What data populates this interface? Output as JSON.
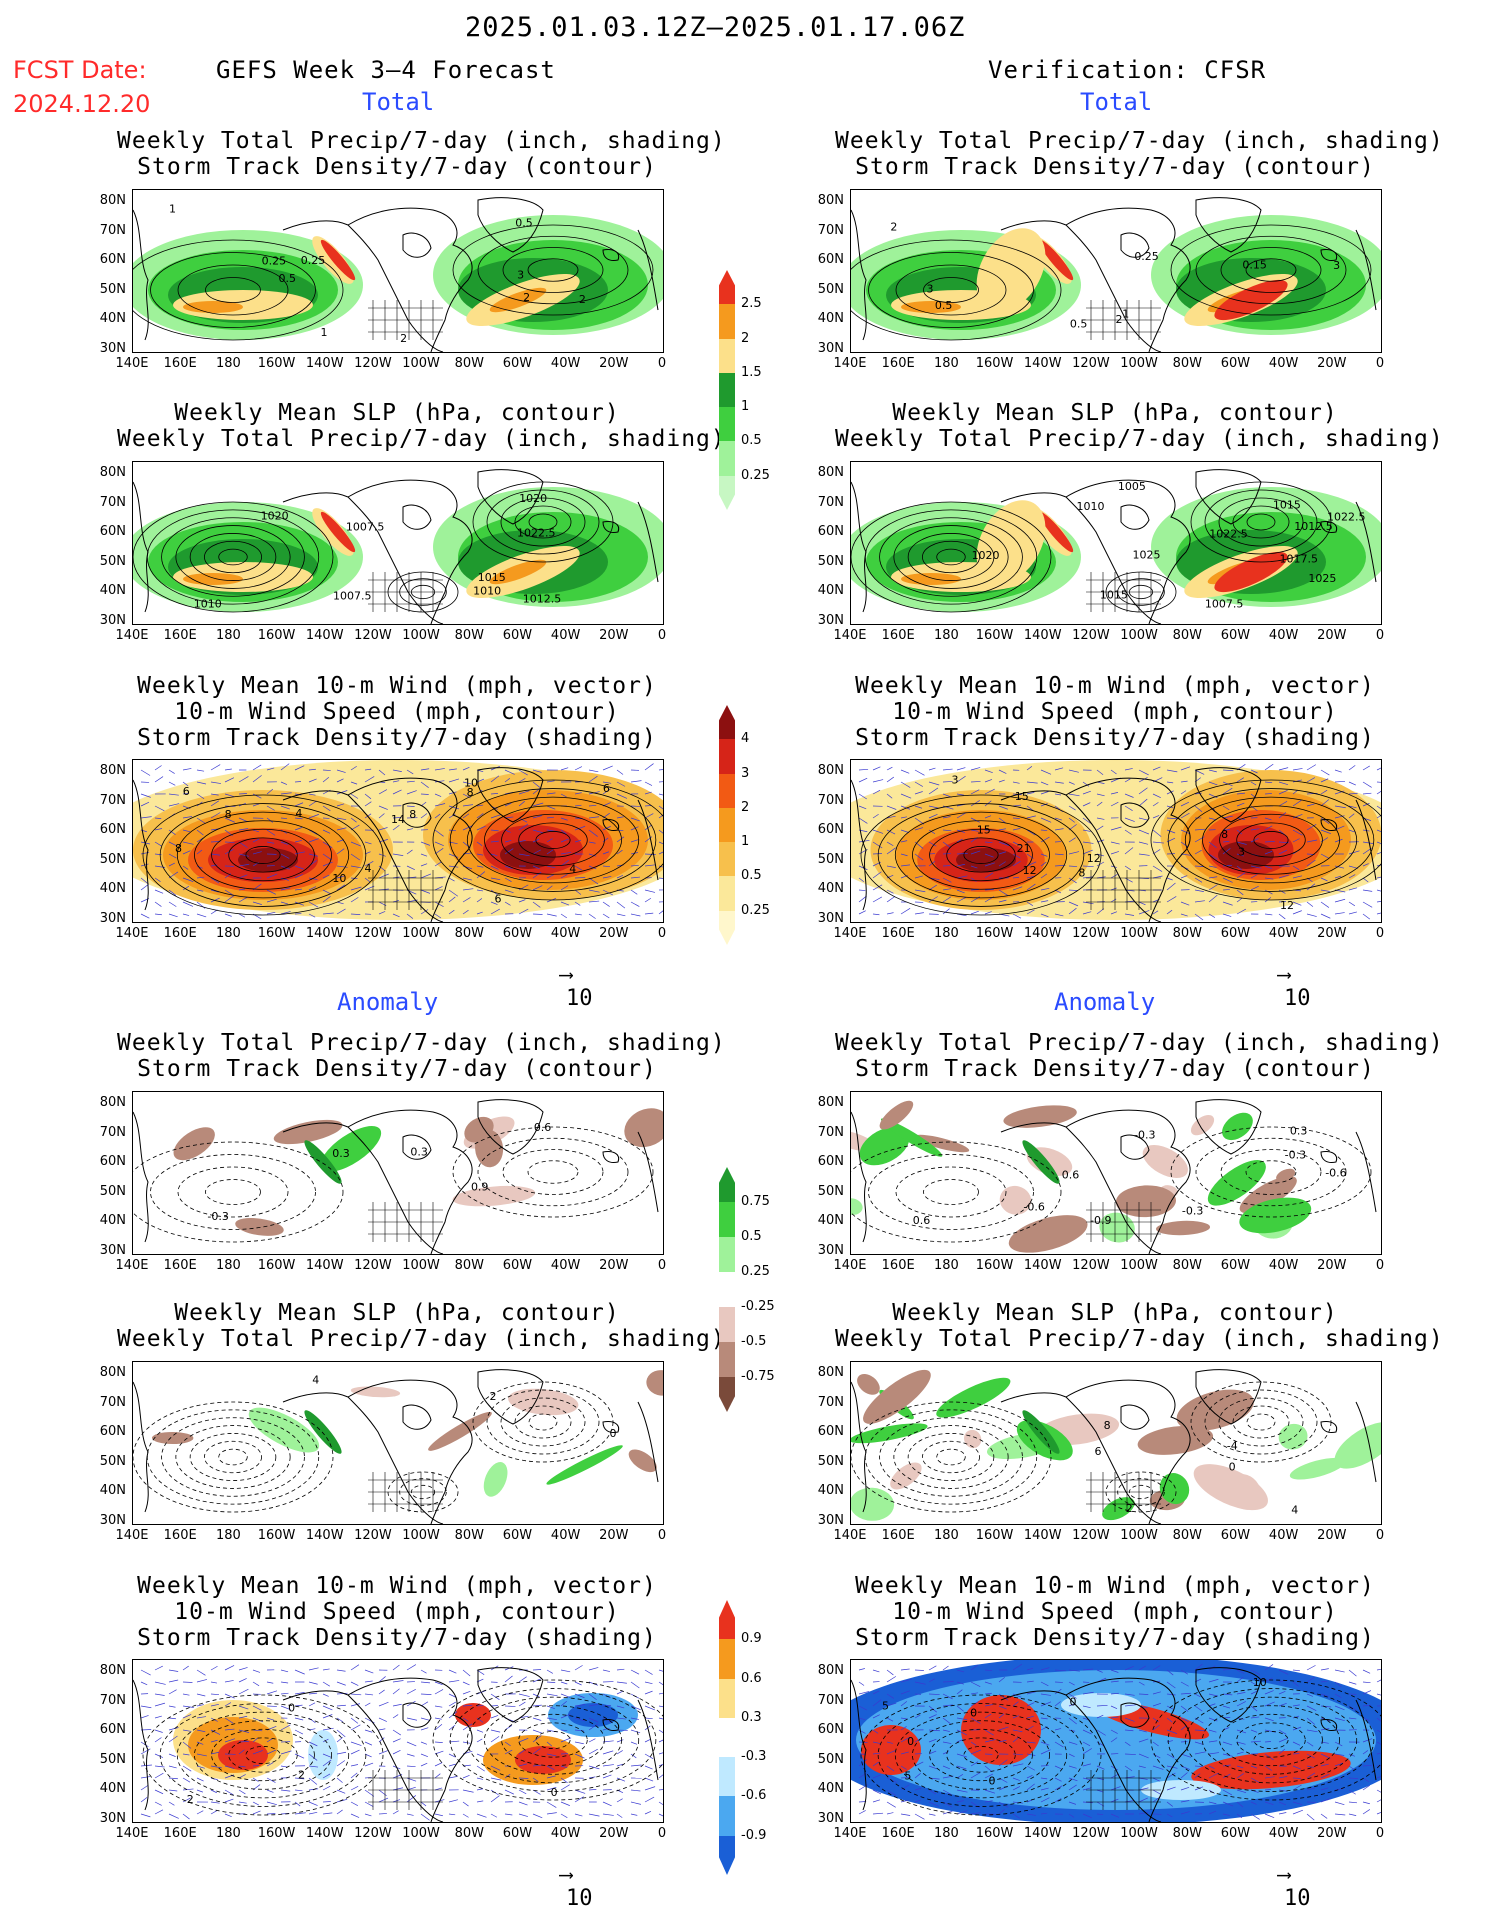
{
  "header": {
    "date_range": "2025.01.03.12Z–2025.01.17.06Z",
    "fcst_label": "FCST Date:",
    "fcst_date": "2024.12.20",
    "forecast_title": "GEFS Week 3–4 Forecast",
    "verification_title": "Verification: CFSR"
  },
  "sections": {
    "total_label": "Total",
    "anomaly_label": "Anomaly"
  },
  "panel_titles": {
    "precip_storm": [
      "Weekly Total Precip/7-day (inch, shading)",
      "Storm Track Density/7-day (contour)"
    ],
    "slp_precip": [
      "Weekly Mean SLP (hPa, contour)",
      "Weekly Total Precip/7-day (inch, shading)"
    ],
    "wind_storm": [
      "Weekly Mean 10-m Wind (mph, vector)",
      "10-m Wind Speed (mph, contour)",
      "Storm Track Density/7-day (shading)"
    ]
  },
  "axes": {
    "lat_labels": [
      "80N",
      "70N",
      "60N",
      "50N",
      "40N",
      "30N"
    ],
    "lon_labels": [
      "140E",
      "160E",
      "180",
      "160W",
      "140W",
      "120W",
      "100W",
      "80W",
      "60W",
      "40W",
      "20W",
      "0"
    ]
  },
  "vector_reference": "10",
  "colorbars": {
    "precip_total": {
      "labels": [
        "2.5",
        "2",
        "1.5",
        "1",
        "0.5",
        "0.25"
      ],
      "colors": [
        "#e8321e",
        "#f59a1e",
        "#fce08a",
        "#1f9a2e",
        "#3fcf3f",
        "#9ff29a",
        "#c7f7c3"
      ]
    },
    "storm_total": {
      "labels": [
        "4",
        "3",
        "2",
        "1",
        "0.5",
        "0.25"
      ],
      "colors": [
        "#8c1010",
        "#d62418",
        "#f25a14",
        "#f59a1e",
        "#f7c04c",
        "#fbe89a",
        "#fff7cc"
      ]
    },
    "precip_anom": {
      "labels": [
        "0.75",
        "0.5",
        "0.25",
        "-0.25",
        "-0.5",
        "-0.75"
      ],
      "colors": [
        "#1f9a2e",
        "#3fcf3f",
        "#9ff29a",
        "#ffffff",
        "#e8c8c0",
        "#b88a7a",
        "#7a4a3a"
      ]
    },
    "storm_anom": {
      "labels": [
        "0.9",
        "0.6",
        "0.3",
        "-0.3",
        "-0.6",
        "-0.9"
      ],
      "colors": [
        "#e8321e",
        "#f59a1e",
        "#fce08a",
        "#ffffff",
        "#bfe9ff",
        "#4ba8f0",
        "#1a5fd6"
      ]
    }
  },
  "panels": {
    "ft1": {
      "contours": [
        "0.5",
        "1",
        "0.5",
        "2",
        "3",
        "2",
        "0.25",
        "0.25",
        "1",
        "2"
      ]
    },
    "vt1": {
      "contours": [
        "0.5",
        "1",
        "0.25",
        "2",
        "3",
        "0.5",
        "2",
        "3",
        "0.15"
      ]
    },
    "ft2": {
      "contours": [
        "1022.5",
        "1015",
        "1010",
        "1012.5",
        "1020",
        "1007.5",
        "1010",
        "1007.5",
        "1020"
      ]
    },
    "vt2": {
      "contours": [
        "1025",
        "1017.5",
        "1015",
        "1012.5",
        "1010",
        "1007.5",
        "1022.5",
        "1020",
        "1025",
        "1015",
        "1005",
        "1022.5"
      ]
    },
    "ft3": {
      "contours": [
        "4",
        "8",
        "10",
        "8",
        "10",
        "6",
        "8",
        "14",
        "8",
        "6",
        "4",
        "4",
        "6"
      ]
    },
    "vt3": {
      "contours": [
        "12",
        "15",
        "3",
        "3",
        "12",
        "15",
        "8",
        "21",
        "12",
        "8"
      ]
    },
    "fa1": {
      "contours": [
        "0.6",
        "0.3",
        "0.9",
        "0.3",
        "-0.3"
      ]
    },
    "va1": {
      "contours": [
        "-0.6",
        "-0.3",
        "-0.9",
        "-0.3",
        "-0.6",
        "-0.3",
        "0.3",
        "0.6",
        "0.6"
      ]
    },
    "fa2": {
      "contours": [
        "4",
        "2",
        "0"
      ]
    },
    "va2": {
      "contours": [
        "8",
        "4",
        "0",
        "2",
        "-4",
        "6"
      ]
    },
    "fa3": {
      "contours": [
        "0",
        "2",
        "0",
        "2"
      ]
    },
    "va3": {
      "contours": [
        "5",
        "0",
        "0",
        "0",
        "0",
        "5",
        "10"
      ]
    }
  }
}
